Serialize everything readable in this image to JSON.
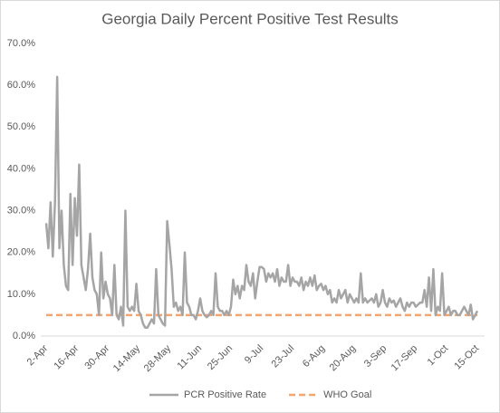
{
  "chart_data": {
    "type": "line",
    "title": "Georgia Daily Percent Positive Test Results",
    "categories": [
      "2-Apr",
      null,
      null,
      null,
      null,
      null,
      null,
      null,
      null,
      null,
      null,
      null,
      null,
      null,
      "16-Apr",
      null,
      null,
      null,
      null,
      null,
      null,
      null,
      null,
      null,
      null,
      null,
      null,
      null,
      "30-Apr",
      null,
      null,
      null,
      null,
      null,
      null,
      null,
      null,
      null,
      null,
      null,
      null,
      null,
      "14-May",
      null,
      null,
      null,
      null,
      null,
      null,
      null,
      null,
      null,
      null,
      null,
      null,
      null,
      "28-May",
      null,
      null,
      null,
      null,
      null,
      null,
      null,
      null,
      null,
      null,
      null,
      null,
      null,
      "11-Jun",
      null,
      null,
      null,
      null,
      null,
      null,
      null,
      null,
      null,
      null,
      null,
      null,
      null,
      "25-Jun",
      null,
      null,
      null,
      null,
      null,
      null,
      null,
      null,
      null,
      null,
      null,
      null,
      null,
      "9-Jul",
      null,
      null,
      null,
      null,
      null,
      null,
      null,
      null,
      null,
      null,
      null,
      null,
      null,
      "23-Jul",
      null,
      null,
      null,
      null,
      null,
      null,
      null,
      null,
      null,
      null,
      null,
      null,
      null,
      "6-Aug",
      null,
      null,
      null,
      null,
      null,
      null,
      null,
      null,
      null,
      null,
      null,
      null,
      null,
      "20-Aug",
      null,
      null,
      null,
      null,
      null,
      null,
      null,
      null,
      null,
      null,
      null,
      null,
      null,
      "3-Sep",
      null,
      null,
      null,
      null,
      null,
      null,
      null,
      null,
      null,
      null,
      null,
      null,
      null,
      "17-Sep",
      null,
      null,
      null,
      null,
      null,
      null,
      null,
      null,
      null,
      null,
      null,
      null,
      null,
      "1-Oct",
      null,
      null,
      null,
      null,
      null,
      null,
      null,
      null,
      null,
      null,
      null,
      null,
      null,
      "15-Oct"
    ],
    "series": [
      {
        "name": "PCR Positive Rate",
        "color": "#a5a5a5",
        "values": [
          27,
          21,
          32,
          19,
          32,
          62,
          21,
          30,
          17,
          12,
          11,
          34,
          17,
          33,
          24,
          41,
          17,
          14,
          11,
          16,
          24.5,
          14,
          11,
          10,
          5,
          20,
          9,
          13,
          10,
          9,
          5,
          17,
          5,
          4,
          7,
          2.5,
          30,
          7,
          6,
          7,
          6,
          12.5,
          6,
          5,
          3,
          2,
          2,
          3,
          4,
          3,
          16,
          5,
          4,
          3,
          2.5,
          27.5,
          22,
          16,
          7,
          8,
          6,
          7,
          5,
          20,
          8,
          7,
          5,
          5,
          4,
          6,
          9,
          6,
          5,
          4.5,
          5,
          6,
          5,
          15,
          7,
          6,
          6,
          5,
          6,
          5,
          7,
          13.5,
          10,
          12,
          9,
          12,
          11,
          17,
          13,
          12,
          15,
          9,
          13,
          16.5,
          16.5,
          16,
          13,
          15,
          14,
          15,
          13,
          16,
          12,
          14,
          13,
          13,
          17,
          12,
          14,
          13,
          13,
          12,
          14,
          11,
          13,
          12,
          14,
          12,
          14.5,
          11,
          12,
          12.5,
          11,
          12,
          10,
          11,
          8,
          9,
          8,
          11,
          9,
          10,
          11,
          8,
          10,
          9,
          8,
          9,
          8,
          15,
          8,
          9,
          8,
          8.5,
          9,
          8,
          10,
          7,
          8,
          11,
          8,
          7,
          9,
          8,
          8.5,
          7,
          8,
          9,
          7,
          6,
          8,
          7,
          8,
          8,
          7,
          7.5,
          8,
          8,
          11,
          7,
          14,
          6,
          16,
          5,
          7,
          6,
          15,
          5,
          6,
          7,
          5,
          6,
          6,
          5,
          5,
          6,
          7,
          6,
          5,
          7.5,
          4,
          5,
          6
        ]
      }
    ],
    "reference_lines": [
      {
        "name": "WHO Goal",
        "color": "#f4a46e",
        "value": 5
      }
    ],
    "ylim": [
      0,
      70
    ],
    "yticks": [
      {
        "value": 0,
        "label": "0.0%"
      },
      {
        "value": 10,
        "label": "10.0%"
      },
      {
        "value": 20,
        "label": "20.0%"
      },
      {
        "value": 30,
        "label": "30.0%"
      },
      {
        "value": 40,
        "label": "40.0%"
      },
      {
        "value": 50,
        "label": "50.0%"
      },
      {
        "value": 60,
        "label": "60.0%"
      },
      {
        "value": 70,
        "label": "70.0%"
      }
    ],
    "grid": false,
    "legend": "bottom"
  }
}
